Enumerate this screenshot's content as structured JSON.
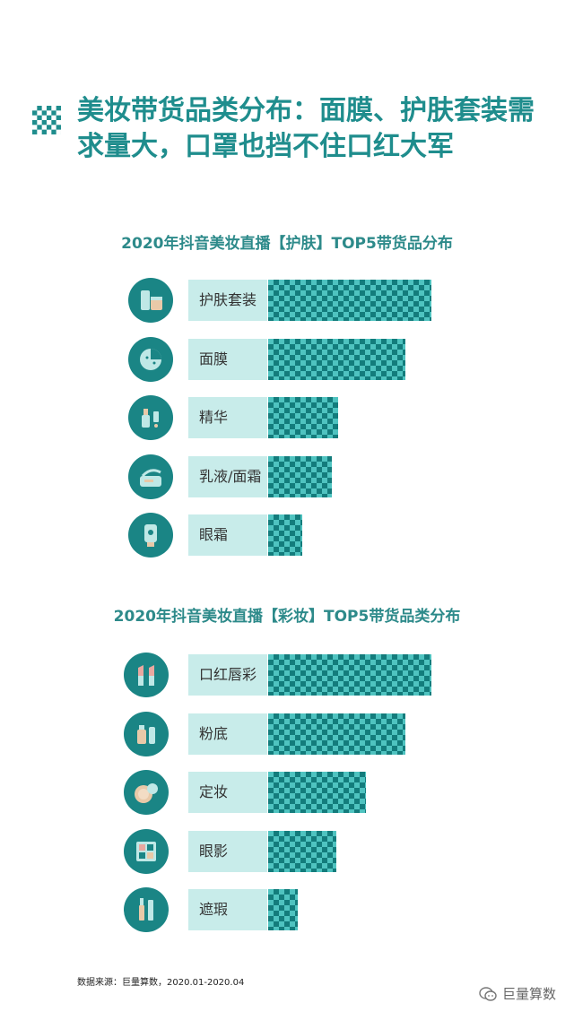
{
  "page_title": "美妆带货品类分布：面膜、护肤套装需求量大，口罩也挡不住口红大军",
  "source_text": "数据来源：巨量算数，2020.01-2020.04",
  "watermark_text": "巨量算数",
  "colors": {
    "accent": "#1f8d8d",
    "circle": "#1a8585",
    "label_bg": "#c8ecea",
    "bar_dark": "#137c7c",
    "bar_light": "#4fc3c0"
  },
  "chart_data": [
    {
      "type": "bar",
      "orientation": "horizontal",
      "title": "2020年抖音美妆直播【护肤】TOP5带货品分布",
      "categories": [
        "护肤套装",
        "面膜",
        "精华",
        "乳液/面霜",
        "眼霜"
      ],
      "values": [
        100,
        84,
        43,
        39,
        21
      ],
      "icons": [
        "skincare-set-icon",
        "face-mask-icon",
        "serum-icon",
        "cream-icon",
        "eye-cream-icon"
      ]
    },
    {
      "type": "bar",
      "orientation": "horizontal",
      "title": "2020年抖音美妆直播【彩妆】TOP5带货品类分布",
      "categories": [
        "口红唇彩",
        "粉底",
        "定妆",
        "眼影",
        "遮瑕"
      ],
      "values": [
        100,
        84,
        60,
        42,
        18
      ],
      "icons": [
        "lipstick-icon",
        "foundation-icon",
        "powder-compact-icon",
        "eyeshadow-palette-icon",
        "concealer-icon"
      ]
    }
  ]
}
